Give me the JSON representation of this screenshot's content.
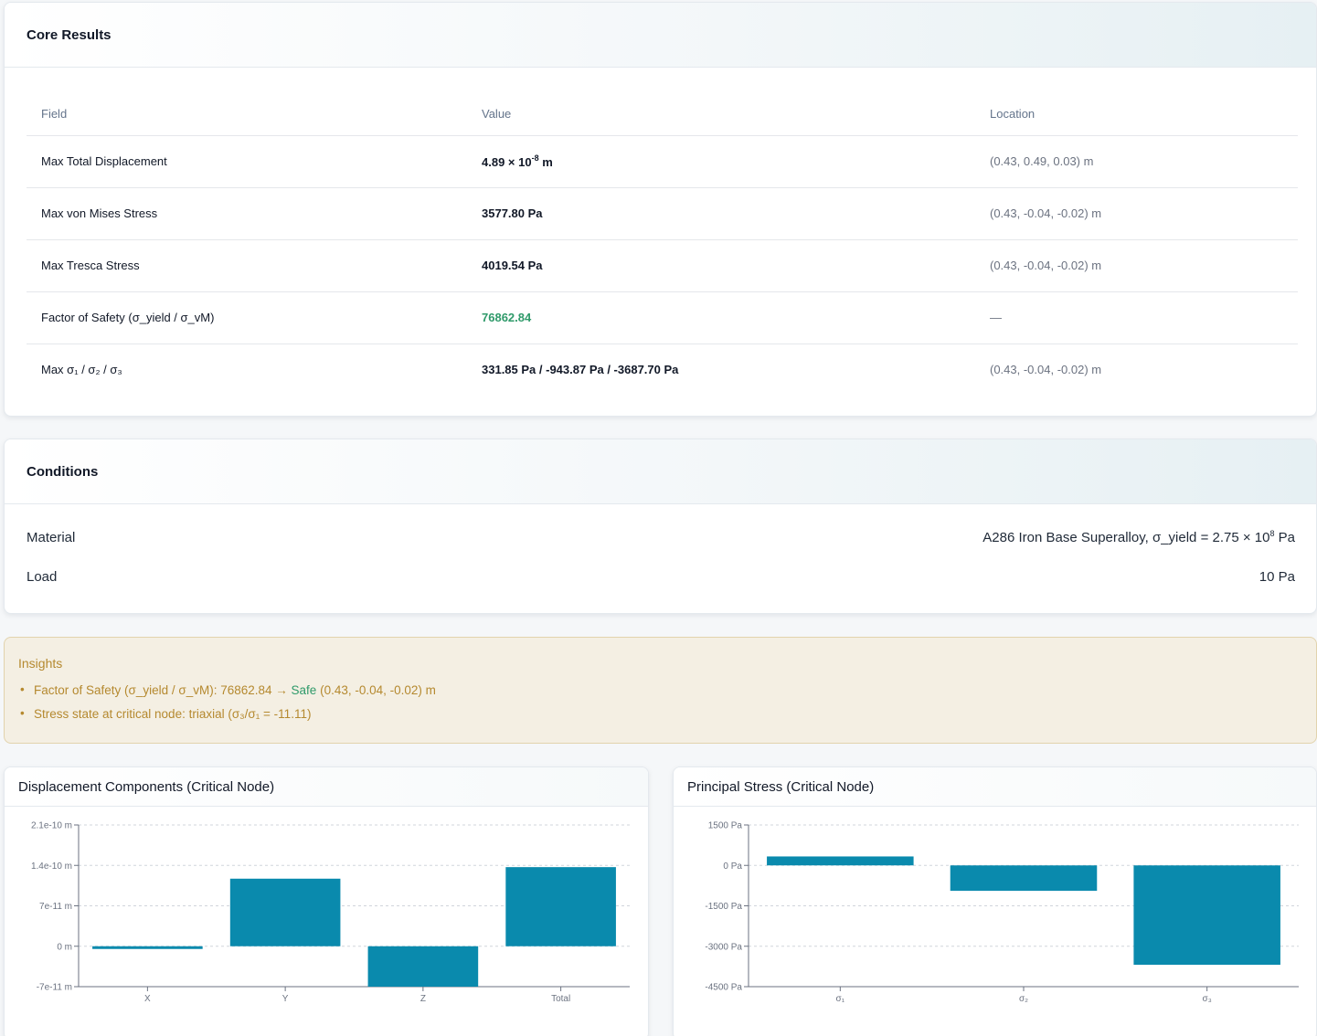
{
  "core": {
    "title": "Core Results",
    "headers": {
      "field": "Field",
      "value": "Value",
      "location": "Location"
    },
    "rows": [
      {
        "field": "Max Total Displacement",
        "value_main": "4.89 × 10",
        "value_sup": "-8",
        "value_unit": " m",
        "location": "(0.43, 0.49, 0.03) m"
      },
      {
        "field": "Max von Mises Stress",
        "value": "3577.80 Pa",
        "location": "(0.43, -0.04, -0.02) m"
      },
      {
        "field": "Max Tresca Stress",
        "value": "4019.54 Pa",
        "location": "(0.43, -0.04, -0.02) m"
      },
      {
        "field": "Factor of Safety (σ_yield / σ_vM)",
        "value": "76862.84",
        "location": "—"
      },
      {
        "field": "Max σ₁ / σ₂ / σ₃",
        "value": "331.85 Pa / -943.87 Pa / -3687.70 Pa",
        "location": "(0.43, -0.04, -0.02) m"
      }
    ]
  },
  "conditions": {
    "title": "Conditions",
    "material_label": "Material",
    "material_value_main": "A286 Iron Base Superalloy, σ_yield = 2.75 × 10",
    "material_value_sup": "8",
    "material_value_unit": " Pa",
    "load_label": "Load",
    "load_value": "10 Pa"
  },
  "insights": {
    "title": "Insights",
    "item1_prefix": "Factor of Safety (σ_yield / σ_vM): 76862.84 → ",
    "item1_status": "Safe",
    "item1_suffix": " (0.43, -0.04, -0.02) m",
    "item2": "Stress state at critical node: triaxial (σ₃/σ₁ = -11.11)"
  },
  "chart_data": [
    {
      "type": "bar",
      "title": "Displacement Components (Critical Node)",
      "categories": [
        "X",
        "Y",
        "Z",
        "Total"
      ],
      "values": [
        -2e-12,
        1.17e-10,
        -7e-11,
        1.37e-10
      ],
      "ylim": [
        -7e-11,
        2.1e-10
      ],
      "yticks": [
        -7e-11,
        0,
        7e-11,
        1.4e-10,
        2.1e-10
      ],
      "ytick_labels": [
        "-7e-11 m",
        "0 m",
        "7e-11 m",
        "1.4e-10 m",
        "2.1e-10 m"
      ],
      "grid": true,
      "color": "#0a8aad"
    },
    {
      "type": "bar",
      "title": "Principal Stress (Critical Node)",
      "categories": [
        "σ₁",
        "σ₂",
        "σ₃"
      ],
      "values": [
        331.85,
        -943.87,
        -3687.7
      ],
      "ylim": [
        -4500,
        1500
      ],
      "yticks": [
        -4500,
        -3000,
        -1500,
        0,
        1500
      ],
      "ytick_labels": [
        "-4500 Pa",
        "-3000 Pa",
        "-1500 Pa",
        "0 Pa",
        "1500 Pa"
      ],
      "grid": true,
      "color": "#0a8aad"
    }
  ]
}
